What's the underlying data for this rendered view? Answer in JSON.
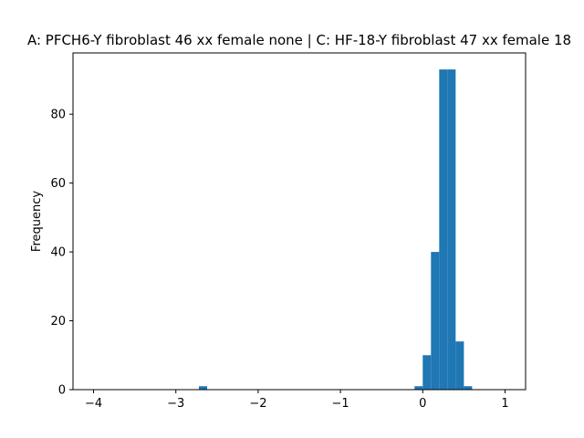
{
  "chart_data": {
    "type": "bar",
    "title": "A: PFCH6-Y fibroblast 46 xx female none | C: HF-18-Y fibroblast 47 xx female 18",
    "xlabel": "",
    "ylabel": "Frequency",
    "xlim": [
      -4.25,
      1.25
    ],
    "ylim": [
      0,
      97.8
    ],
    "xticks": [
      -4,
      -3,
      -2,
      -1,
      0,
      1
    ],
    "yticks": [
      0,
      20,
      40,
      60,
      80
    ],
    "bin_width": 0.1,
    "color": "#1f77b4",
    "grid": false,
    "bins": [
      {
        "x0": -2.72,
        "x1": -2.62,
        "count": 1
      },
      {
        "x0": -0.1,
        "x1": 0.0,
        "count": 1
      },
      {
        "x0": 0.0,
        "x1": 0.1,
        "count": 10
      },
      {
        "x0": 0.1,
        "x1": 0.2,
        "count": 40
      },
      {
        "x0": 0.2,
        "x1": 0.3,
        "count": 93
      },
      {
        "x0": 0.3,
        "x1": 0.4,
        "count": 93
      },
      {
        "x0": 0.4,
        "x1": 0.5,
        "count": 14
      },
      {
        "x0": 0.5,
        "x1": 0.6,
        "count": 1
      }
    ]
  }
}
